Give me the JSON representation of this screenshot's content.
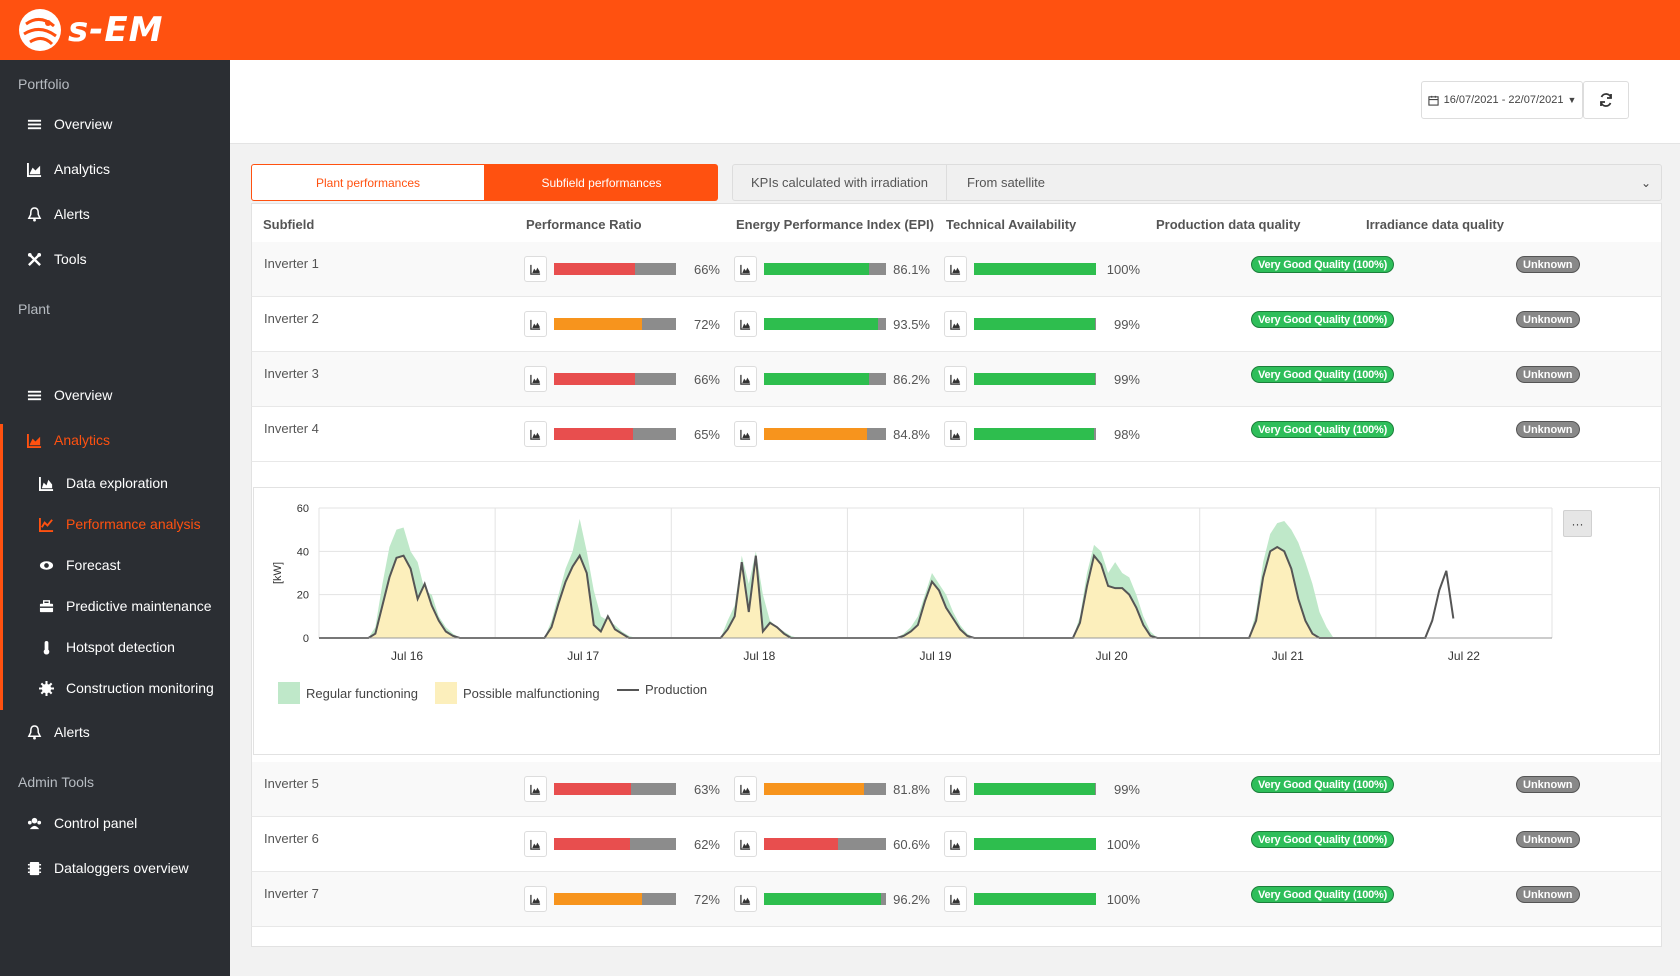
{
  "brand": {
    "name": "s-EM",
    "color": "#ff5110"
  },
  "sidebar": {
    "sections": {
      "portfolio": "Portfolio",
      "plant": "Plant",
      "admin": "Admin Tools"
    },
    "portfolio_items": [
      {
        "label": "Overview",
        "icon": "list-icon"
      },
      {
        "label": "Analytics",
        "icon": "area-chart-icon"
      },
      {
        "label": "Alerts",
        "icon": "bell-icon"
      },
      {
        "label": "Tools",
        "icon": "tools-icon"
      }
    ],
    "plant_items": [
      {
        "label": "Overview",
        "icon": "list-icon"
      },
      {
        "label": "Analytics",
        "icon": "area-chart-icon",
        "active": true
      },
      {
        "label": "Data exploration",
        "icon": "chart-icon"
      },
      {
        "label": "Performance analysis",
        "icon": "line-chart-icon",
        "active": true
      },
      {
        "label": "Forecast",
        "icon": "eye-icon"
      },
      {
        "label": "Predictive maintenance",
        "icon": "toolbox-icon"
      },
      {
        "label": "Hotspot detection",
        "icon": "thermometer-icon"
      },
      {
        "label": "Construction monitoring",
        "icon": "cog-icon"
      },
      {
        "label": "Alerts",
        "icon": "bell-icon"
      }
    ],
    "admin_items": [
      {
        "label": "Control panel",
        "icon": "users-icon"
      },
      {
        "label": "Dataloggers overview",
        "icon": "database-icon"
      }
    ]
  },
  "header": {
    "date_range": "16/07/2021 - 22/07/2021"
  },
  "toggle": {
    "plant": "Plant performances",
    "subfield": "Subfield performances",
    "active": "subfield"
  },
  "kpi_select": {
    "label": "KPIs calculated with irradiation",
    "value": "From satellite"
  },
  "table": {
    "headers": [
      "Subfield",
      "Performance Ratio",
      "Energy Performance Index (EPI)",
      "Technical Availability",
      "Production data quality",
      "Irradiance data quality"
    ],
    "rows": [
      {
        "name": "Inverter 1",
        "pr": "66%",
        "pr_fill": 0.66,
        "pr_color": "#e84e4e",
        "epi": "86.1%",
        "epi_fill": 0.861,
        "epi_color": "#2ebe4e",
        "ta": "100%",
        "ta_fill": 1.0,
        "ta_color": "#2ebe4e",
        "prod_q": "Very Good Quality (100%)",
        "irr_q": "Unknown"
      },
      {
        "name": "Inverter 2",
        "pr": "72%",
        "pr_fill": 0.72,
        "pr_color": "#f7941d",
        "epi": "93.5%",
        "epi_fill": 0.935,
        "epi_color": "#2ebe4e",
        "ta": "99%",
        "ta_fill": 0.99,
        "ta_color": "#2ebe4e",
        "prod_q": "Very Good Quality (100%)",
        "irr_q": "Unknown"
      },
      {
        "name": "Inverter 3",
        "pr": "66%",
        "pr_fill": 0.66,
        "pr_color": "#e84e4e",
        "epi": "86.2%",
        "epi_fill": 0.862,
        "epi_color": "#2ebe4e",
        "ta": "99%",
        "ta_fill": 0.99,
        "ta_color": "#2ebe4e",
        "prod_q": "Very Good Quality (100%)",
        "irr_q": "Unknown"
      },
      {
        "name": "Inverter 4",
        "pr": "65%",
        "pr_fill": 0.65,
        "pr_color": "#e84e4e",
        "epi": "84.8%",
        "epi_fill": 0.848,
        "epi_color": "#f7941d",
        "ta": "98%",
        "ta_fill": 0.98,
        "ta_color": "#2ebe4e",
        "prod_q": "Very Good Quality (100%)",
        "irr_q": "Unknown"
      },
      {
        "name": "Inverter 5",
        "pr": "63%",
        "pr_fill": 0.63,
        "pr_color": "#e84e4e",
        "epi": "81.8%",
        "epi_fill": 0.818,
        "epi_color": "#f7941d",
        "ta": "99%",
        "ta_fill": 0.99,
        "ta_color": "#2ebe4e",
        "prod_q": "Very Good Quality (100%)",
        "irr_q": "Unknown"
      },
      {
        "name": "Inverter 6",
        "pr": "62%",
        "pr_fill": 0.62,
        "pr_color": "#e84e4e",
        "epi": "60.6%",
        "epi_fill": 0.606,
        "epi_color": "#e84e4e",
        "ta": "100%",
        "ta_fill": 1.0,
        "ta_color": "#2ebe4e",
        "prod_q": "Very Good Quality (100%)",
        "irr_q": "Unknown"
      },
      {
        "name": "Inverter 7",
        "pr": "72%",
        "pr_fill": 0.72,
        "pr_color": "#f7941d",
        "epi": "96.2%",
        "epi_fill": 0.962,
        "epi_color": "#2ebe4e",
        "ta": "100%",
        "ta_fill": 1.0,
        "ta_color": "#2ebe4e",
        "prod_q": "Very Good Quality (100%)",
        "irr_q": "Unknown"
      }
    ]
  },
  "chart_data": {
    "type": "area",
    "ylabel": "[kW]",
    "ylim": [
      0,
      60
    ],
    "yticks": [
      0,
      20,
      40,
      60
    ],
    "xticks": [
      "Jul 16",
      "Jul 17",
      "Jul 18",
      "Jul 19",
      "Jul 20",
      "Jul 21",
      "Jul 22"
    ],
    "legend": [
      "Regular functioning",
      "Possible malfunctioning",
      "Production"
    ],
    "legend_colors": [
      "#bfe8c9",
      "#fcefbc",
      "#555555"
    ],
    "series": [
      {
        "name": "Regular functioning",
        "x": [
          0.0,
          0.28,
          0.32,
          0.36,
          0.4,
          0.44,
          0.48,
          0.52,
          0.56,
          0.6,
          0.64,
          0.68,
          0.72,
          0.76,
          0.8,
          1.0,
          1.28,
          1.32,
          1.36,
          1.4,
          1.44,
          1.48,
          1.52,
          1.56,
          1.6,
          1.64,
          1.68,
          1.72,
          1.76,
          1.8,
          2.0,
          2.28,
          2.32,
          2.36,
          2.4,
          2.44,
          2.48,
          2.52,
          2.56,
          2.6,
          2.64,
          2.68,
          2.72,
          2.76,
          2.8,
          3.0,
          3.28,
          3.32,
          3.36,
          3.4,
          3.44,
          3.48,
          3.52,
          3.56,
          3.6,
          3.64,
          3.68,
          3.72,
          3.76,
          3.8,
          4.0,
          4.28,
          4.32,
          4.36,
          4.4,
          4.44,
          4.48,
          4.52,
          4.56,
          4.6,
          4.64,
          4.68,
          4.72,
          4.76,
          4.8,
          5.0,
          5.28,
          5.32,
          5.36,
          5.4,
          5.44,
          5.48,
          5.52,
          5.56,
          5.6,
          5.64,
          5.68,
          5.72,
          5.76,
          5.8,
          6.0
        ],
        "values": [
          0,
          0,
          5,
          25,
          42,
          50,
          51,
          40,
          35,
          22,
          20,
          10,
          5,
          2,
          0,
          0,
          0,
          8,
          20,
          32,
          40,
          55,
          40,
          22,
          10,
          8,
          6,
          3,
          1,
          0,
          0,
          0,
          8,
          15,
          38,
          25,
          40,
          20,
          8,
          5,
          3,
          1,
          0,
          0,
          0,
          0,
          0,
          2,
          5,
          10,
          20,
          30,
          25,
          20,
          12,
          6,
          2,
          0,
          0,
          0,
          0,
          0,
          10,
          30,
          43,
          40,
          30,
          35,
          30,
          28,
          20,
          10,
          3,
          0,
          0,
          0,
          0,
          12,
          35,
          48,
          53,
          54,
          50,
          44,
          35,
          25,
          12,
          5,
          0,
          0,
          0
        ]
      },
      {
        "name": "Possible malfunctioning",
        "x": [
          0.0,
          0.28,
          0.32,
          0.36,
          0.4,
          0.44,
          0.48,
          0.52,
          0.56,
          0.6,
          0.64,
          0.68,
          0.72,
          0.76,
          0.8,
          1.0,
          1.28,
          1.32,
          1.36,
          1.4,
          1.44,
          1.48,
          1.52,
          1.56,
          1.6,
          1.64,
          1.68,
          1.72,
          1.76,
          1.8,
          2.0,
          2.28,
          2.32,
          2.36,
          2.4,
          2.44,
          2.48,
          2.52,
          2.56,
          2.6,
          2.64,
          2.68,
          2.72,
          2.76,
          2.8,
          3.0,
          3.28,
          3.32,
          3.36,
          3.4,
          3.44,
          3.48,
          3.52,
          3.56,
          3.6,
          3.64,
          3.68,
          3.72,
          3.76,
          3.8,
          4.0,
          4.28,
          4.32,
          4.36,
          4.4,
          4.44,
          4.48,
          4.52,
          4.56,
          4.6,
          4.64,
          4.68,
          4.72,
          4.76,
          4.8,
          5.0,
          5.28,
          5.32,
          5.36,
          5.4,
          5.44,
          5.48,
          5.52,
          5.56,
          5.6,
          5.64,
          5.68,
          5.72,
          5.76,
          5.8,
          6.0
        ],
        "values": [
          0,
          0,
          2,
          15,
          28,
          37,
          38,
          32,
          18,
          25,
          15,
          8,
          3,
          1,
          0,
          0,
          0,
          5,
          16,
          26,
          33,
          38,
          30,
          6,
          3,
          10,
          4,
          2,
          0,
          0,
          0,
          0,
          4,
          10,
          35,
          12,
          38,
          3,
          7,
          5,
          2,
          0,
          0,
          0,
          0,
          0,
          0,
          1,
          3,
          6,
          17,
          26,
          22,
          14,
          9,
          4,
          1,
          0,
          0,
          0,
          0,
          0,
          7,
          24,
          38,
          34,
          24,
          23,
          23,
          20,
          14,
          6,
          1,
          0,
          0,
          0,
          0,
          8,
          28,
          40,
          42,
          40,
          32,
          18,
          8,
          2,
          0,
          0,
          0,
          0,
          0
        ]
      },
      {
        "name": "Production",
        "x": [
          0.0,
          0.28,
          0.32,
          0.36,
          0.4,
          0.44,
          0.48,
          0.52,
          0.56,
          0.6,
          0.64,
          0.68,
          0.72,
          0.76,
          0.8,
          1.0,
          1.28,
          1.32,
          1.36,
          1.4,
          1.44,
          1.48,
          1.52,
          1.56,
          1.6,
          1.64,
          1.68,
          1.72,
          1.76,
          1.8,
          2.0,
          2.28,
          2.32,
          2.36,
          2.4,
          2.44,
          2.48,
          2.52,
          2.56,
          2.6,
          2.64,
          2.68,
          2.72,
          2.76,
          2.8,
          3.0,
          3.28,
          3.32,
          3.36,
          3.4,
          3.44,
          3.48,
          3.52,
          3.56,
          3.6,
          3.64,
          3.68,
          3.72,
          3.76,
          3.8,
          4.0,
          4.28,
          4.32,
          4.36,
          4.4,
          4.44,
          4.48,
          4.52,
          4.56,
          4.6,
          4.64,
          4.68,
          4.72,
          4.76,
          4.8,
          5.0,
          5.28,
          5.32,
          5.36,
          5.4,
          5.44,
          5.48,
          5.52,
          5.56,
          5.6,
          5.64,
          5.68,
          5.72,
          5.76,
          5.8,
          6.0,
          6.28,
          6.32,
          6.36,
          6.4,
          6.44
        ],
        "values": [
          0,
          0,
          2,
          15,
          28,
          37,
          38,
          32,
          18,
          25,
          15,
          8,
          3,
          1,
          0,
          0,
          0,
          5,
          16,
          26,
          33,
          38,
          30,
          6,
          3,
          10,
          4,
          2,
          0,
          0,
          0,
          0,
          4,
          10,
          35,
          12,
          38,
          3,
          7,
          5,
          2,
          0,
          0,
          0,
          0,
          0,
          0,
          1,
          3,
          6,
          17,
          26,
          22,
          14,
          9,
          4,
          1,
          0,
          0,
          0,
          0,
          0,
          7,
          24,
          38,
          34,
          24,
          23,
          23,
          20,
          14,
          6,
          1,
          0,
          0,
          0,
          0,
          8,
          28,
          40,
          42,
          40,
          32,
          18,
          8,
          2,
          0,
          0,
          0,
          0,
          0,
          0,
          8,
          22,
          31,
          9
        ]
      }
    ]
  }
}
